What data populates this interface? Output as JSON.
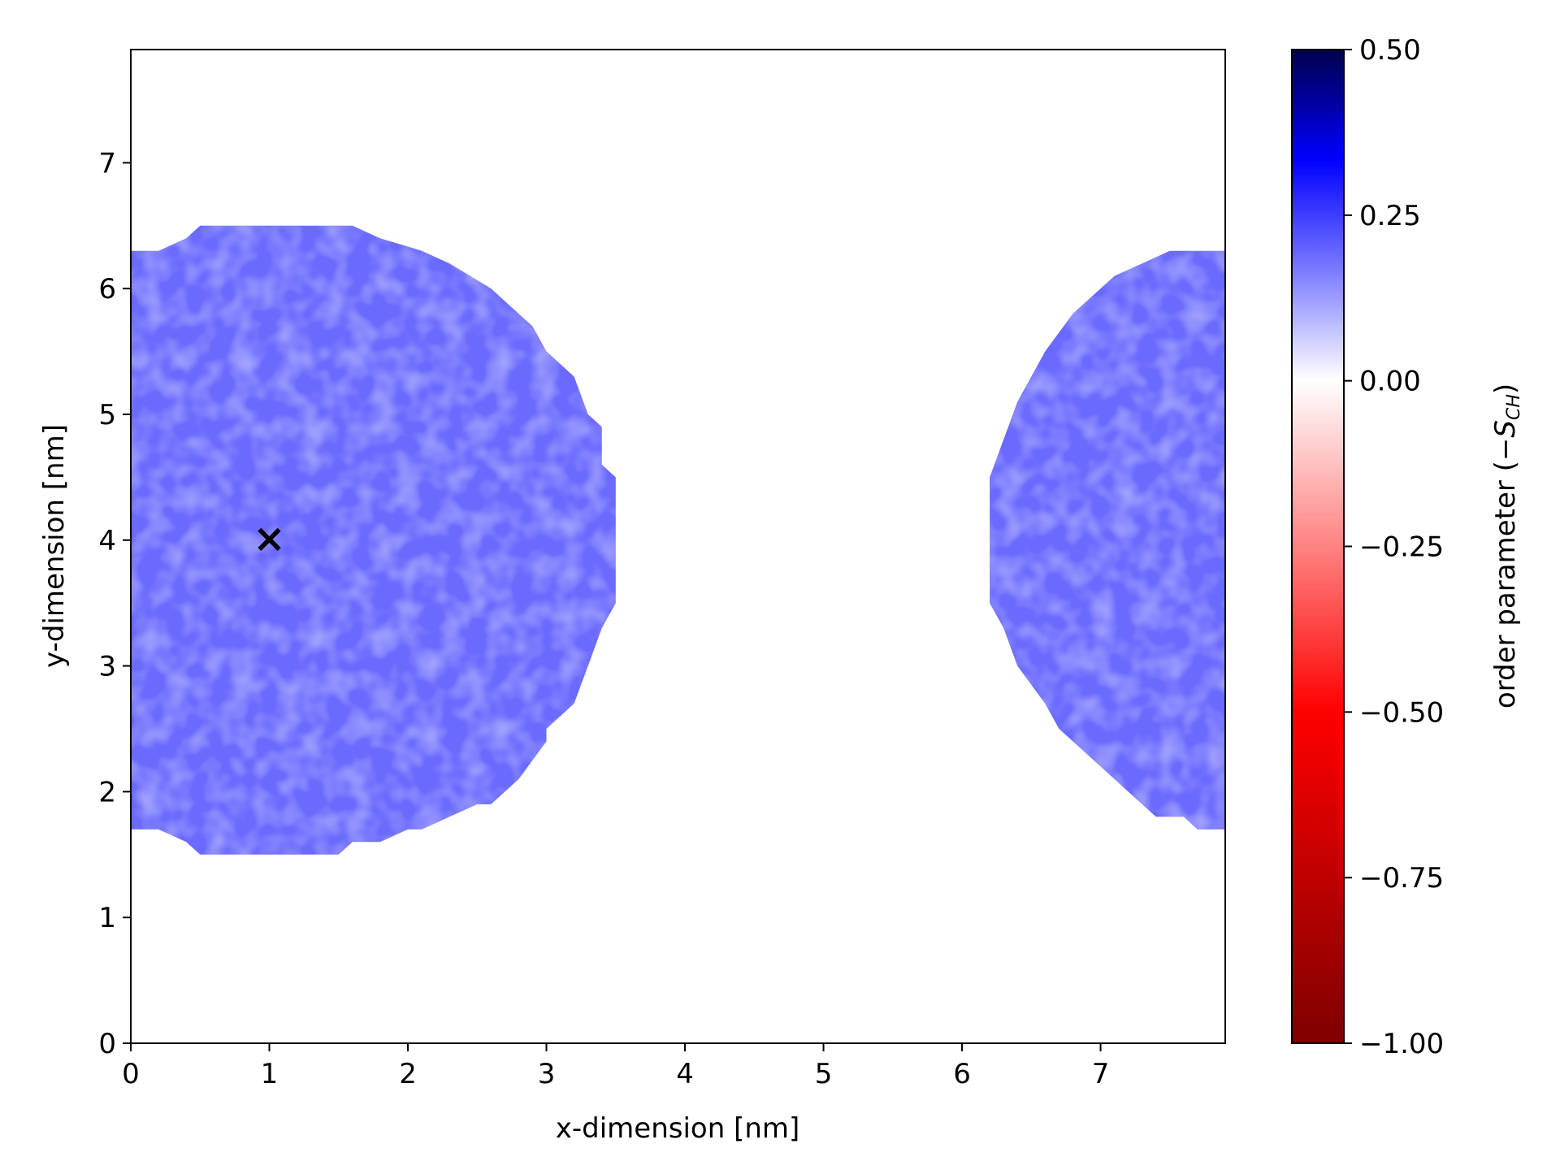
{
  "chart_data": {
    "type": "heatmap",
    "title": "",
    "xlabel": "x-dimension [nm]",
    "ylabel": "y-dimension [nm]",
    "xlim": [
      0,
      7.9
    ],
    "ylim": [
      0,
      7.9
    ],
    "x_ticks": [
      0,
      1,
      2,
      3,
      4,
      5,
      6,
      7
    ],
    "x_tick_labels": [
      "0",
      "1",
      "2",
      "3",
      "4",
      "5",
      "6",
      "7"
    ],
    "y_ticks": [
      0,
      1,
      2,
      3,
      4,
      5,
      6,
      7
    ],
    "y_tick_labels": [
      "0",
      "1",
      "2",
      "3",
      "4",
      "5",
      "6",
      "7"
    ],
    "grid": false,
    "colorbar": {
      "label_main": "order parameter (",
      "label_symbol": "−S",
      "label_sub": "CH",
      "label_close": ")",
      "range": [
        -1.0,
        0.5
      ],
      "ticks": [
        0.5,
        0.25,
        0.0,
        -0.25,
        -0.5,
        -0.75,
        -1.0
      ],
      "tick_labels": [
        "0.50",
        "0.25",
        "0.00",
        "−0.25",
        "−0.50",
        "−0.75",
        "−1.00"
      ],
      "colormap": "seismic"
    },
    "regions": [
      {
        "typical_value": 0.12,
        "color": "#6a6aff",
        "boundary": [
          [
            0.0,
            1.7
          ],
          [
            0.2,
            1.7
          ],
          [
            0.4,
            1.6
          ],
          [
            0.5,
            1.5
          ],
          [
            1.5,
            1.5
          ],
          [
            1.6,
            1.6
          ],
          [
            1.8,
            1.6
          ],
          [
            2.0,
            1.7
          ],
          [
            2.1,
            1.7
          ],
          [
            2.3,
            1.8
          ],
          [
            2.5,
            1.9
          ],
          [
            2.6,
            1.9
          ],
          [
            2.8,
            2.1
          ],
          [
            3.0,
            2.4
          ],
          [
            3.0,
            2.5
          ],
          [
            3.2,
            2.7
          ],
          [
            3.3,
            3.0
          ],
          [
            3.4,
            3.3
          ],
          [
            3.5,
            3.5
          ],
          [
            3.5,
            4.5
          ],
          [
            3.4,
            4.6
          ],
          [
            3.4,
            4.9
          ],
          [
            3.3,
            5.0
          ],
          [
            3.2,
            5.3
          ],
          [
            3.0,
            5.5
          ],
          [
            2.9,
            5.7
          ],
          [
            2.6,
            6.0
          ],
          [
            2.3,
            6.2
          ],
          [
            2.1,
            6.3
          ],
          [
            1.8,
            6.4
          ],
          [
            1.6,
            6.5
          ],
          [
            0.5,
            6.5
          ],
          [
            0.4,
            6.4
          ],
          [
            0.2,
            6.3
          ],
          [
            0.0,
            6.3
          ]
        ]
      },
      {
        "typical_value": 0.15,
        "color": "#6a6aff",
        "boundary": [
          [
            7.9,
            1.7
          ],
          [
            7.7,
            1.7
          ],
          [
            7.6,
            1.8
          ],
          [
            7.4,
            1.8
          ],
          [
            7.3,
            1.9
          ],
          [
            7.1,
            2.1
          ],
          [
            6.9,
            2.3
          ],
          [
            6.7,
            2.5
          ],
          [
            6.6,
            2.7
          ],
          [
            6.4,
            3.0
          ],
          [
            6.3,
            3.3
          ],
          [
            6.2,
            3.5
          ],
          [
            6.2,
            4.5
          ],
          [
            6.3,
            4.8
          ],
          [
            6.4,
            5.1
          ],
          [
            6.5,
            5.3
          ],
          [
            6.6,
            5.5
          ],
          [
            6.8,
            5.8
          ],
          [
            7.0,
            6.0
          ],
          [
            7.1,
            6.1
          ],
          [
            7.3,
            6.2
          ],
          [
            7.5,
            6.3
          ],
          [
            7.9,
            6.3
          ]
        ]
      }
    ],
    "marker": {
      "symbol": "×",
      "x": 1.0,
      "y": 4.0,
      "color": "#000000"
    }
  }
}
